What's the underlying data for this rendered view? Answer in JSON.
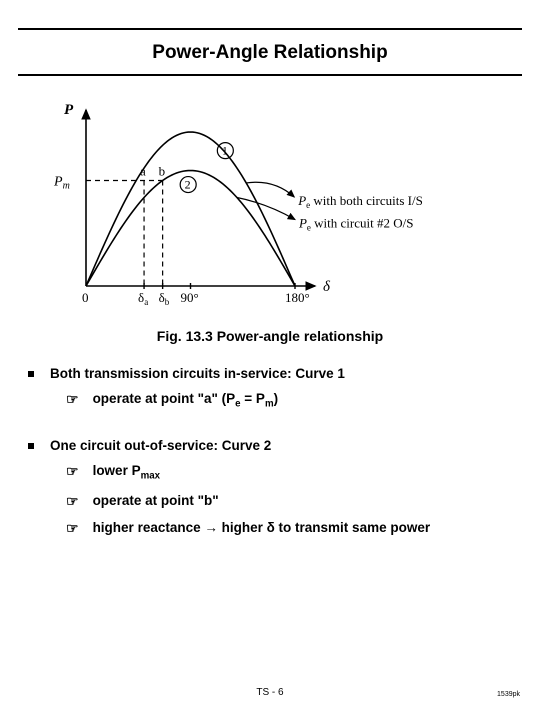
{
  "title": "Power-Angle Relationship",
  "caption": "Fig. 13.3  Power-angle relationship",
  "footer_left": "TS - 6",
  "footer_right": "1539pk",
  "chart": {
    "type": "line",
    "background_color": "#ffffff",
    "axis_color": "#000000",
    "curve_color": "#000000",
    "dash_color": "#000000",
    "line_width": 1.6,
    "font_family": "Times New Roman",
    "x_axis": {
      "var": "δ",
      "range_deg": [
        0,
        180
      ],
      "ticks": [
        {
          "deg": 0,
          "label": "0"
        },
        {
          "deg": 50,
          "label": "δₐ"
        },
        {
          "deg": 66,
          "label": "δ_b"
        },
        {
          "deg": 90,
          "label": "90°"
        },
        {
          "deg": 180,
          "label": "180°"
        }
      ]
    },
    "y_axis": {
      "var": "P",
      "Pm_level": 0.685
    },
    "curves": [
      {
        "id": 1,
        "amplitude": 1.0,
        "label_callout": "Pₑ with both circuits I/S"
      },
      {
        "id": 2,
        "amplitude": 0.75,
        "label_callout": "Pₑ with circuit #2 O/S"
      }
    ],
    "points": [
      {
        "name": "a",
        "deg": 50,
        "on_curve": 1
      },
      {
        "name": "b",
        "deg": 66,
        "on_curve": 2
      }
    ],
    "circle_labels": [
      {
        "text": "1",
        "near_deg": 120,
        "curve": 1
      },
      {
        "text": "2",
        "near_deg": 88,
        "curve": 2
      }
    ]
  },
  "bullets": [
    {
      "text_html": "Both transmission circuits in-service: Curve 1",
      "sub": [
        {
          "text_html": "operate at point \"a\" (P<sub>e</sub> = P<sub>m</sub>)"
        }
      ]
    },
    {
      "text_html": "One circuit out-of-service: Curve 2",
      "sub": [
        {
          "text_html": "lower P<sub>max</sub>"
        },
        {
          "text_html": "operate at point \"b\""
        },
        {
          "text_html": "higher reactance → higher δ to transmit same power"
        }
      ]
    }
  ]
}
